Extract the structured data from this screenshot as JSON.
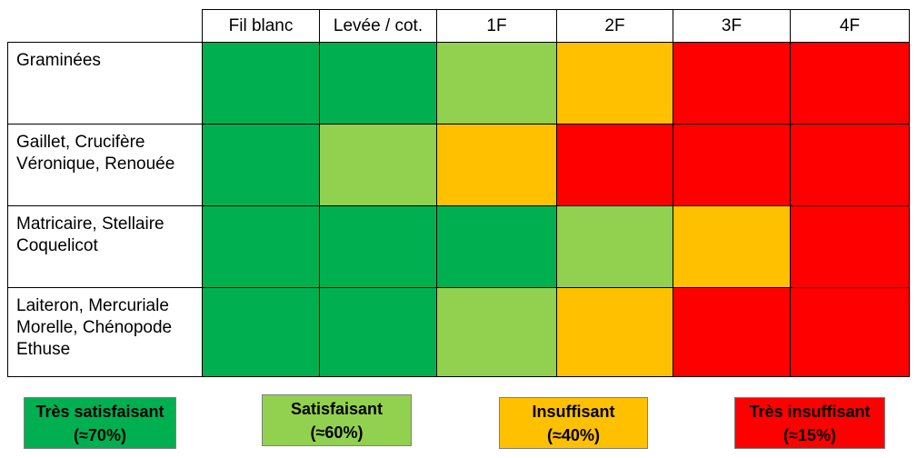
{
  "chart_data": {
    "type": "heatmap",
    "columns": [
      "Fil blanc",
      "Levée / cot.",
      "1F",
      "2F",
      "3F",
      "4F"
    ],
    "rows": [
      "Graminées",
      "Gaillet, Crucifère\nVéronique, Renouée",
      "Matricaire, Stellaire\nCoquelicot",
      "Laiteron, Mercuriale\nMorelle, Chénopode\nEthuse"
    ],
    "levels": {
      "1": {
        "label": "Très satisfaisant",
        "value": "(≈70%)",
        "color": "#00b050"
      },
      "2": {
        "label": "Satisfaisant",
        "value": "(≈60%)",
        "color": "#92d050"
      },
      "3": {
        "label": "Insuffisant",
        "value": "(≈40%)",
        "color": "#ffc000"
      },
      "4": {
        "label": "Très insuffisant",
        "value": "(≈15%)",
        "color": "#ff0000"
      }
    },
    "matrix": [
      [
        1,
        1,
        2,
        3,
        4,
        4
      ],
      [
        1,
        2,
        3,
        4,
        4,
        4
      ],
      [
        1,
        1,
        1,
        2,
        3,
        4
      ],
      [
        1,
        1,
        2,
        3,
        4,
        4
      ]
    ],
    "legend_order": [
      "1",
      "2",
      "3",
      "4"
    ]
  }
}
